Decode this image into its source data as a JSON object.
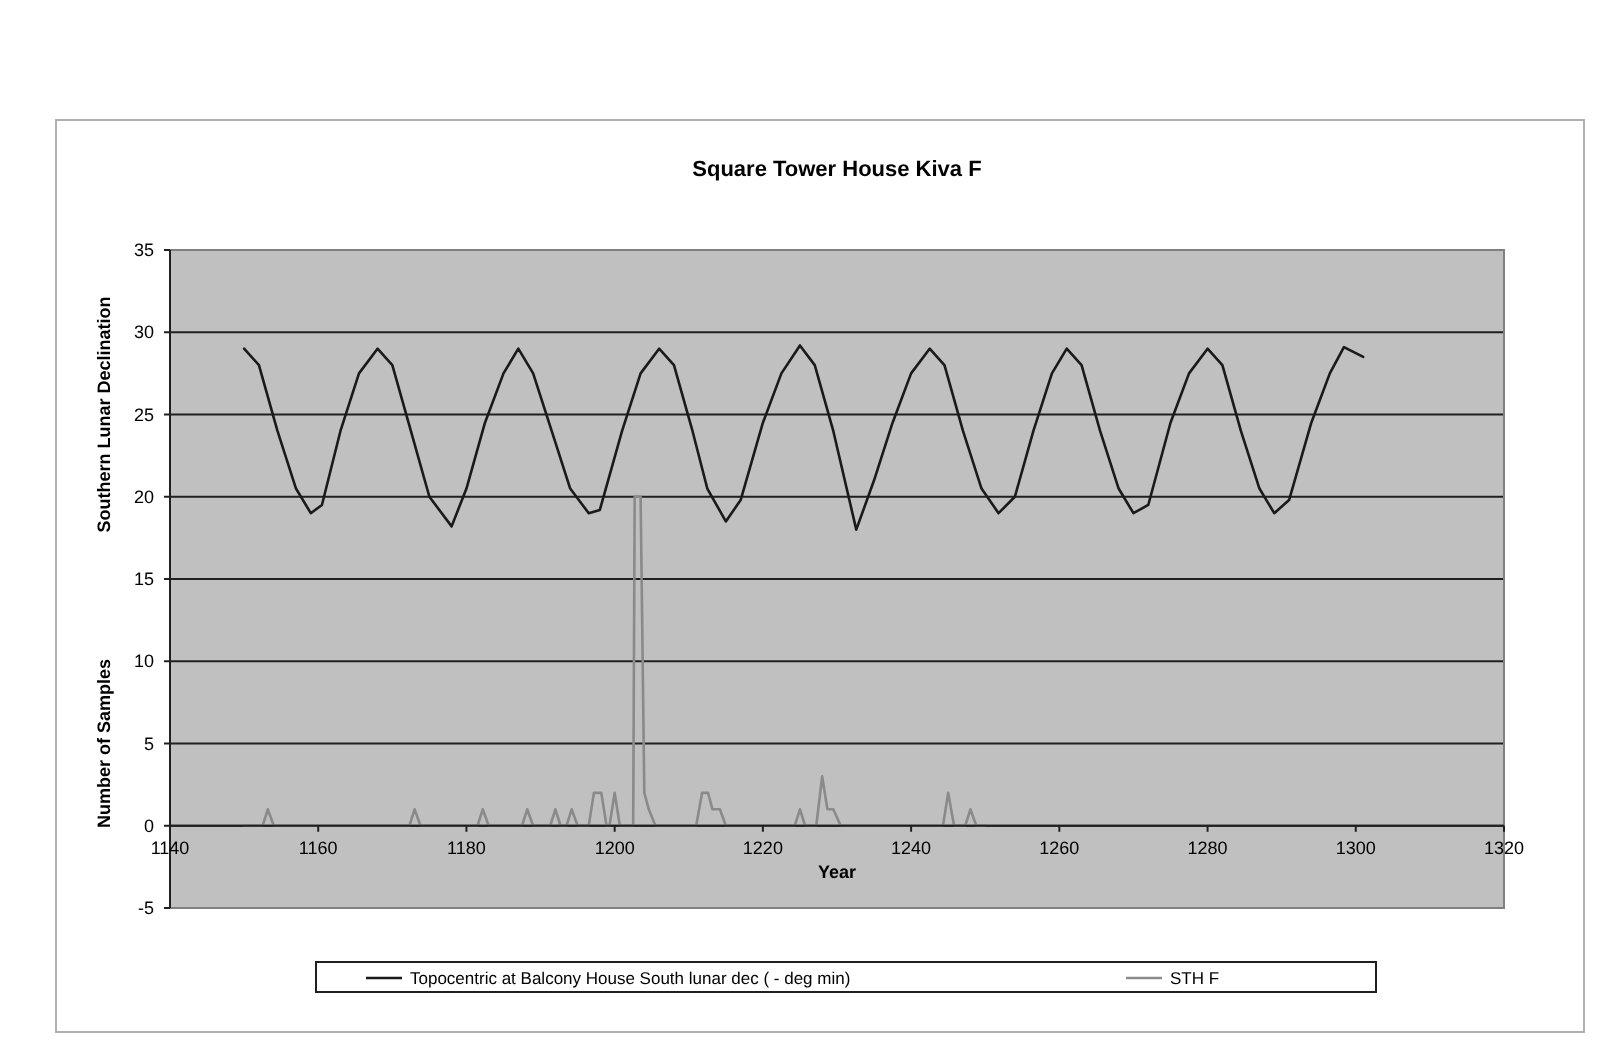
{
  "chart_data": {
    "type": "line",
    "title": "Square Tower House Kiva F",
    "xlabel": "Year",
    "ylabel": "Southern Lunar Declination",
    "annotations": [
      "Number of Samples"
    ],
    "xlim": [
      1140,
      1320
    ],
    "xticks": [
      1140,
      1160,
      1180,
      1200,
      1220,
      1240,
      1260,
      1280,
      1300,
      1320
    ],
    "ylim": [
      -5,
      35
    ],
    "yticks": [
      -5,
      0,
      5,
      10,
      15,
      20,
      25,
      30,
      35
    ],
    "grid": "y",
    "legend": "bottom",
    "marker": "none",
    "line_style": "solid",
    "series": [
      {
        "name": "Topocentric at Balcony House South lunar dec ( - deg min)",
        "color": "#1a1a1a",
        "x": [
          1150,
          1152,
          1154.5,
          1157,
          1159,
          1160.5,
          1163,
          1165.5,
          1168,
          1170,
          1172.5,
          1175,
          1178,
          1180,
          1182.5,
          1185,
          1187,
          1189,
          1191.5,
          1194,
          1196.5,
          1198,
          1201,
          1203.5,
          1206,
          1208,
          1210.5,
          1212.5,
          1215,
          1217,
          1220,
          1222.5,
          1225,
          1227,
          1229.5,
          1232.6,
          1235,
          1237.5,
          1240,
          1242.5,
          1244.5,
          1247,
          1249.5,
          1251.8,
          1254,
          1256.5,
          1259,
          1261,
          1263,
          1265.5,
          1268,
          1270,
          1272,
          1275,
          1277.5,
          1280,
          1282,
          1284.5,
          1287,
          1289,
          1291,
          1294,
          1296.5,
          1298.4,
          1301
        ],
        "values": [
          29,
          28,
          24,
          20.5,
          19,
          19.5,
          24,
          27.5,
          29,
          28,
          24,
          20,
          18.2,
          20.5,
          24.5,
          27.5,
          29,
          27.5,
          24,
          20.5,
          19,
          19.2,
          24,
          27.5,
          29,
          28,
          24,
          20.5,
          18.5,
          19.8,
          24.5,
          27.5,
          29.2,
          28,
          24,
          18,
          21,
          24.5,
          27.5,
          29,
          28,
          24,
          20.5,
          19,
          20,
          24,
          27.5,
          29,
          28,
          24,
          20.5,
          19,
          19.5,
          24.5,
          27.5,
          29,
          28,
          24,
          20.5,
          19,
          19.8,
          24.5,
          27.5,
          29.1,
          28.5
        ]
      },
      {
        "name": "STH F",
        "color": "#8a8a8a",
        "x": [
          1150,
          1152.5,
          1153.2,
          1154,
          1172.3,
          1173,
          1173.8,
          1181.5,
          1182.2,
          1183,
          1187.5,
          1188.2,
          1189,
          1191.3,
          1192,
          1192.7,
          1193.5,
          1194.2,
          1195,
          1196.5,
          1197.2,
          1198.2,
          1198.9,
          1199.3,
          1200,
          1200.7,
          1202.5,
          1202.7,
          1203.5,
          1204,
          1204.6,
          1205.5,
          1211,
          1211.8,
          1212.6,
          1213.2,
          1214.2,
          1215,
          1224.3,
          1225,
          1225.7,
          1227.2,
          1228,
          1228.7,
          1229.5,
          1230.5,
          1231.5,
          1244.3,
          1245,
          1245.8,
          1247.3,
          1248,
          1248.8,
          1250
        ],
        "values": [
          0,
          0,
          1,
          0,
          0,
          1,
          0,
          0,
          1,
          0,
          0,
          1,
          0,
          0,
          1,
          0,
          0,
          1,
          0,
          0,
          2,
          2,
          0,
          0,
          2,
          0,
          0,
          20,
          20,
          2,
          1,
          0,
          0,
          2,
          2,
          1,
          1,
          0,
          0,
          1,
          0,
          0,
          3,
          1,
          1,
          0,
          0,
          0,
          2,
          0,
          0,
          1,
          0,
          0
        ]
      }
    ]
  }
}
